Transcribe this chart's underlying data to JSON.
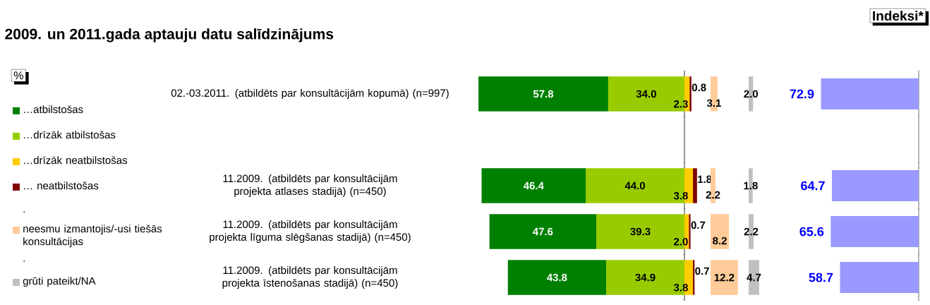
{
  "chart_data": [
    {
      "type": "bar",
      "orientation": "horizontal",
      "stacked": true,
      "title": "2009. un 2011.gada aptauju datu salīdzinājums",
      "categories": [
        "02.-03.2011. (atbildēts par konsultācijām kopumā) (n=997)",
        null,
        "11.2009. (atbildēts par konsultācijām projekta atlases stadijā) (n=450)",
        "11.2009. (atbildēts par konsultācijām projekta līguma slēgšanas stadijā) (n=450)",
        "11.2009. (atbildēts par konsultācijām projekta īstenošanas stadijā) (n=450)"
      ],
      "xlim": [
        92,
        0
      ],
      "series": [
        {
          "name": "…drīzāk atbilstošas",
          "color": "#99cc00",
          "values": [
            34.0,
            null,
            44.0,
            39.3,
            34.9
          ],
          "value_labels": [
            "34.0",
            null,
            "44.0",
            "39.3",
            "34.9"
          ]
        },
        {
          "name": "…atbilstošas",
          "color": "#008000",
          "values": [
            57.8,
            null,
            46.4,
            47.6,
            43.8
          ],
          "value_labels": [
            "57.8",
            null,
            "46.4",
            "47.6",
            "43.8"
          ]
        }
      ],
      "legend": "left",
      "tick_labels": "y",
      "annotations": [
        "%",
        ".",
        "."
      ]
    },
    {
      "type": "bar",
      "orientation": "horizontal",
      "stacked": true,
      "categories": [
        null,
        null,
        null,
        null,
        null
      ],
      "series": [
        {
          "name": "…drīzāk neatbilstošas",
          "color": "#ffcc00",
          "values": [
            2.3,
            null,
            3.8,
            2.0,
            3.8
          ],
          "value_labels": [
            "2.3",
            null,
            "3.8",
            "2.0",
            "3.8"
          ]
        },
        {
          "name": "… neatbilstošas",
          "color": "#800000",
          "values": [
            0.8,
            null,
            1.8,
            0.7,
            0.7
          ],
          "value_labels": [
            "0.8",
            null,
            "1.8",
            "0.7",
            "0.7"
          ]
        }
      ],
      "legend": "left"
    },
    {
      "type": "bar",
      "orientation": "horizontal",
      "categories": [
        null,
        null,
        null,
        null,
        null
      ],
      "series": [
        {
          "name": "neesmu izmantojis/-usi tiešās konsultācijas",
          "color": "#ffcc99",
          "values": [
            3.1,
            null,
            2.2,
            8.2,
            12.2
          ],
          "value_labels": [
            "3.1",
            null,
            "2.2",
            "8.2",
            "12.2"
          ]
        }
      ],
      "legend": "left"
    },
    {
      "type": "bar",
      "orientation": "horizontal",
      "categories": [
        null,
        null,
        null,
        null,
        null
      ],
      "series": [
        {
          "name": "grūti pateikt/NA",
          "color": "#c0c0c0",
          "values": [
            2.0,
            null,
            1.8,
            2.2,
            4.7
          ],
          "value_labels": [
            "2.0",
            null,
            "1.8",
            "2.2",
            "4.7"
          ]
        }
      ],
      "legend": "left"
    },
    {
      "type": "bar",
      "orientation": "horizontal",
      "title": "Indeksi*",
      "categories": [
        null,
        null,
        null,
        null,
        null
      ],
      "values": [
        72.9,
        null,
        64.7,
        65.6,
        58.7
      ],
      "color": "#9999ff",
      "data_labels": true
    }
  ]
}
